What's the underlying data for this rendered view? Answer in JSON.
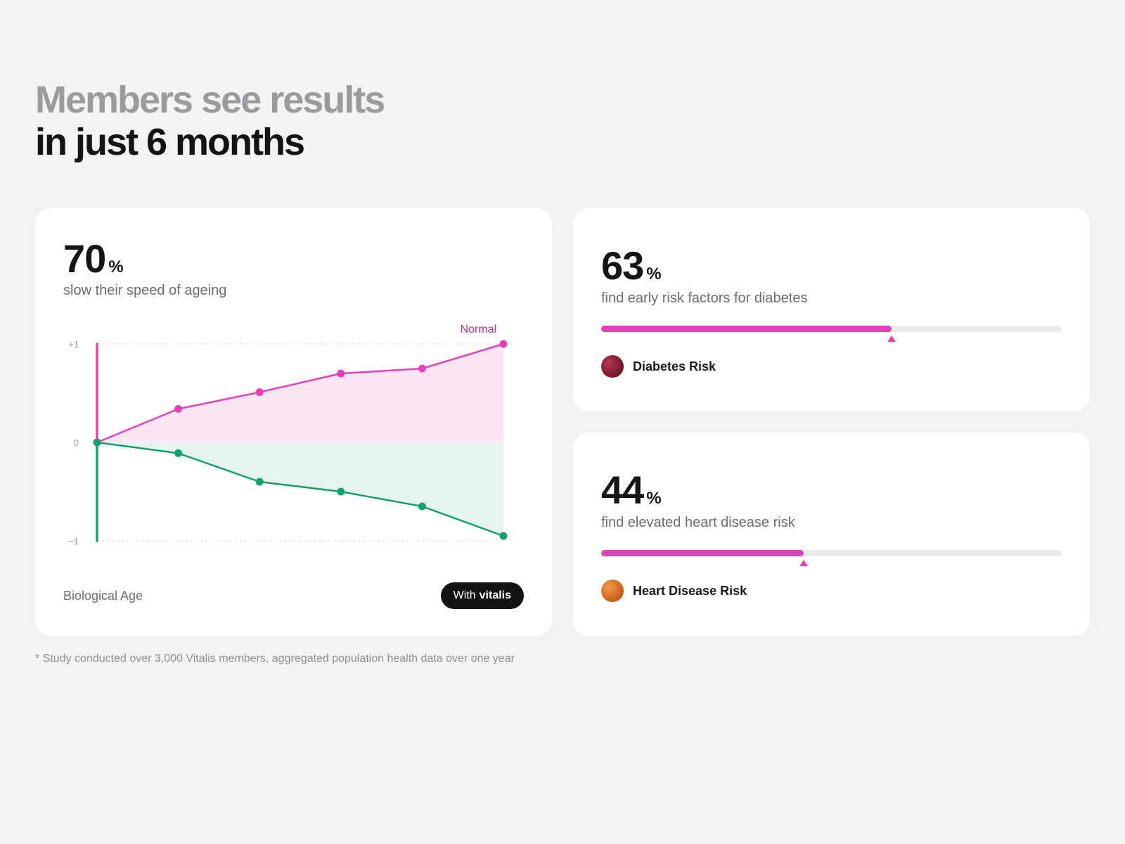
{
  "headline": {
    "line1": "Members see results",
    "line2": "in just 6 months"
  },
  "card_ageing": {
    "stat": "70",
    "unit": "%",
    "desc": "slow their speed of ageing",
    "chart_data": {
      "type": "line",
      "x": [
        0,
        1,
        2,
        3,
        4,
        5
      ],
      "ylim": [
        -1,
        1
      ],
      "y_ticks": [
        "+1",
        "0",
        "−1"
      ],
      "series": [
        {
          "name": "Normal",
          "values": [
            0,
            0.34,
            0.51,
            0.7,
            0.75,
            1.0
          ],
          "color": "#e83fb9",
          "fill": "#fce6f4"
        },
        {
          "name": "",
          "values": [
            0,
            -0.11,
            -0.4,
            -0.5,
            -0.65,
            -0.95
          ],
          "color": "#13a06a",
          "fill": "#e5f5ee"
        }
      ],
      "grid": true
    },
    "x_label": "Biological Age",
    "pill_prefix": "With",
    "pill_brand": "vitalis"
  },
  "card_diabetes": {
    "stat": "63",
    "unit": "%",
    "desc": "find early risk factors for diabetes",
    "progress": 0.63,
    "legend": "Diabetes Risk",
    "accent": "#e83fb9"
  },
  "card_heart": {
    "stat": "44",
    "unit": "%",
    "desc": "find elevated heart disease risk",
    "progress": 0.44,
    "legend": "Heart Disease Risk",
    "accent": "#e83fb9"
  },
  "footnote": "* Study conducted over 3,000 Vitalis members, aggregated population health data over one year"
}
